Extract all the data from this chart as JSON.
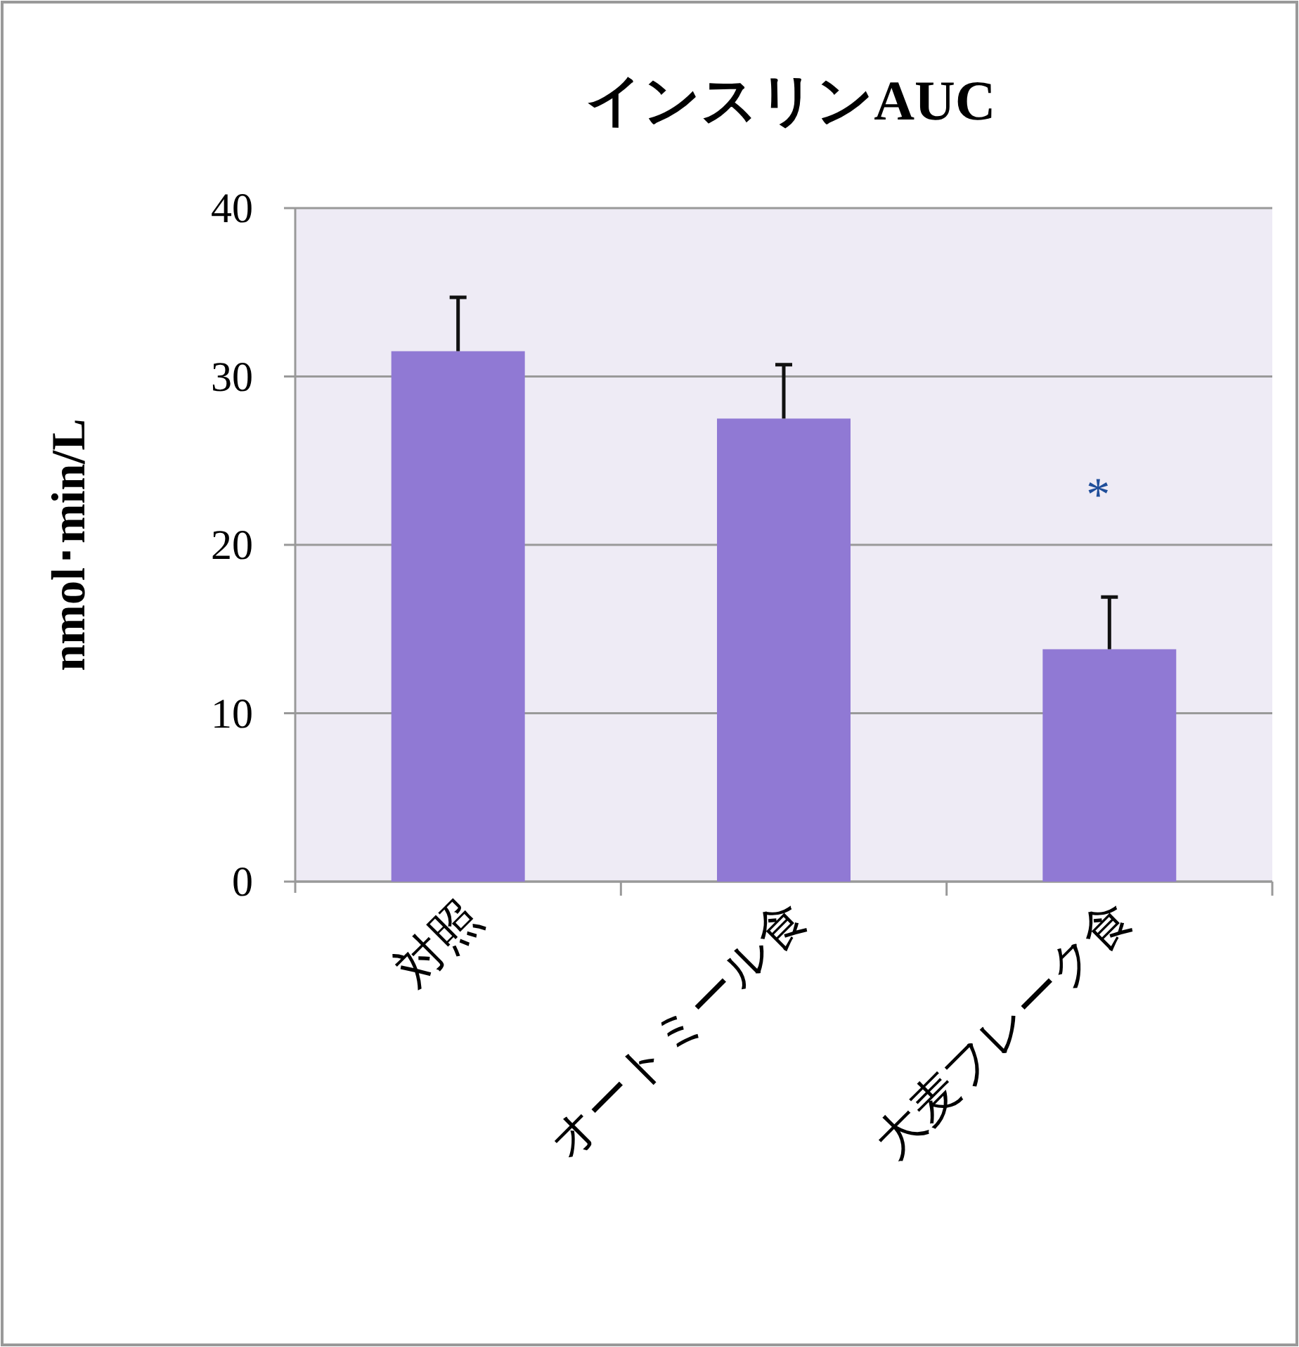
{
  "chart_data": {
    "type": "bar",
    "title": "インスリンAUC",
    "ylabel": "nmol･min/L",
    "categories": [
      "対照",
      "オートミール食",
      "大麦フレーク食"
    ],
    "values": [
      31.5,
      27.5,
      13.8
    ],
    "errors": [
      [
        31.5,
        34.7
      ],
      [
        27.5,
        30.7
      ],
      [
        13.8,
        16.9
      ]
    ],
    "color": "#9079d4",
    "ylim": [
      0,
      40
    ],
    "yticks": [
      0,
      10,
      20,
      30,
      40
    ],
    "grid": "y",
    "annotations": [
      "*"
    ]
  }
}
